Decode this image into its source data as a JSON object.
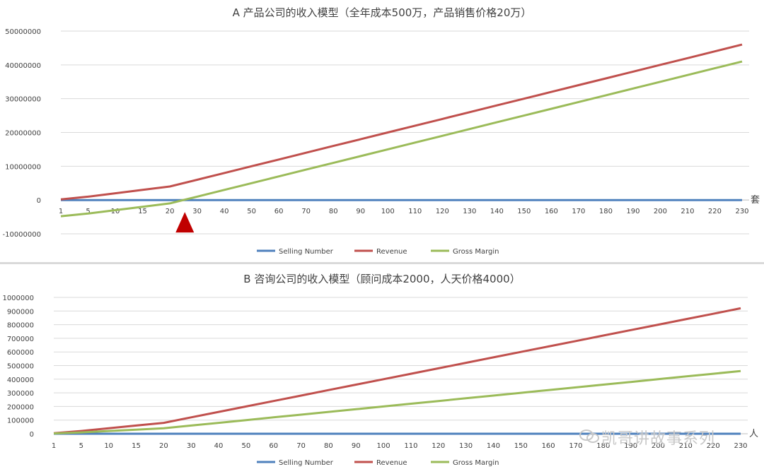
{
  "colors": {
    "selling": "#4f81bd",
    "revenue": "#c0504d",
    "gross": "#9bbb59",
    "grid": "#d9d9d9",
    "axis": "#bfbfbf",
    "marker": "#c00000"
  },
  "chart_data": [
    {
      "type": "line",
      "title": "A 产品公司的收入模型（全年成本500万，产品销售价格20万）",
      "xlabel": "",
      "ylabel": "",
      "axis_unit": "套",
      "categories": [
        "1",
        "5",
        "10",
        "15",
        "20",
        "30",
        "40",
        "50",
        "60",
        "70",
        "80",
        "90",
        "100",
        "110",
        "120",
        "130",
        "140",
        "150",
        "160",
        "170",
        "180",
        "190",
        "200",
        "210",
        "220",
        "230"
      ],
      "ylim": [
        -10000000,
        50000000
      ],
      "yticks": [
        "-10000000",
        "0",
        "10000000",
        "20000000",
        "30000000",
        "40000000",
        "50000000"
      ],
      "yticks_values": [
        -10000000,
        0,
        10000000,
        20000000,
        30000000,
        40000000,
        50000000
      ],
      "grid": true,
      "legend": "bottom",
      "series": [
        {
          "name": "Selling Number",
          "values": [
            1,
            5,
            10,
            15,
            20,
            30,
            40,
            50,
            60,
            70,
            80,
            90,
            100,
            110,
            120,
            130,
            140,
            150,
            160,
            170,
            180,
            190,
            200,
            210,
            220,
            230
          ]
        },
        {
          "name": "Revenue",
          "values": [
            200000,
            1000000,
            2000000,
            3000000,
            4000000,
            6000000,
            8000000,
            10000000,
            12000000,
            14000000,
            16000000,
            18000000,
            20000000,
            22000000,
            24000000,
            26000000,
            28000000,
            30000000,
            32000000,
            34000000,
            36000000,
            38000000,
            40000000,
            42000000,
            44000000,
            46000000
          ]
        },
        {
          "name": "Gross Margin",
          "values": [
            -4800000,
            -4000000,
            -3000000,
            -2000000,
            -1000000,
            1000000,
            3000000,
            5000000,
            7000000,
            9000000,
            11000000,
            13000000,
            15000000,
            17000000,
            19000000,
            21000000,
            23000000,
            25000000,
            27000000,
            29000000,
            31000000,
            33000000,
            35000000,
            37000000,
            39000000,
            41000000
          ]
        }
      ],
      "annotation": {
        "type": "break-even-marker",
        "x_between": [
          "20",
          "30"
        ]
      }
    },
    {
      "type": "line",
      "title": "B 咨询公司的收入模型（顾问成本2000，人天价格4000）",
      "xlabel": "",
      "ylabel": "",
      "axis_unit": "人",
      "categories": [
        "1",
        "5",
        "10",
        "15",
        "20",
        "30",
        "40",
        "50",
        "60",
        "70",
        "80",
        "90",
        "100",
        "110",
        "120",
        "130",
        "140",
        "150",
        "160",
        "170",
        "180",
        "190",
        "200",
        "210",
        "220",
        "230"
      ],
      "ylim": [
        0,
        1000000
      ],
      "yticks": [
        "0",
        "100000",
        "200000",
        "300000",
        "400000",
        "500000",
        "600000",
        "700000",
        "800000",
        "900000",
        "1000000"
      ],
      "yticks_values": [
        0,
        100000,
        200000,
        300000,
        400000,
        500000,
        600000,
        700000,
        800000,
        900000,
        1000000
      ],
      "grid": true,
      "legend": "bottom",
      "series": [
        {
          "name": "Selling Number",
          "values": [
            1,
            5,
            10,
            15,
            20,
            30,
            40,
            50,
            60,
            70,
            80,
            90,
            100,
            110,
            120,
            130,
            140,
            150,
            160,
            170,
            180,
            190,
            200,
            210,
            220,
            230
          ]
        },
        {
          "name": "Revenue",
          "values": [
            4000,
            20000,
            40000,
            60000,
            80000,
            120000,
            160000,
            200000,
            240000,
            280000,
            320000,
            360000,
            400000,
            440000,
            480000,
            520000,
            560000,
            600000,
            640000,
            680000,
            720000,
            760000,
            800000,
            840000,
            880000,
            920000
          ]
        },
        {
          "name": "Gross Margin",
          "values": [
            2000,
            10000,
            20000,
            30000,
            40000,
            60000,
            80000,
            100000,
            120000,
            140000,
            160000,
            180000,
            200000,
            220000,
            240000,
            260000,
            280000,
            300000,
            320000,
            340000,
            360000,
            380000,
            400000,
            420000,
            440000,
            460000
          ]
        }
      ]
    }
  ],
  "watermark": {
    "text": "凯哥讲故事系列"
  }
}
